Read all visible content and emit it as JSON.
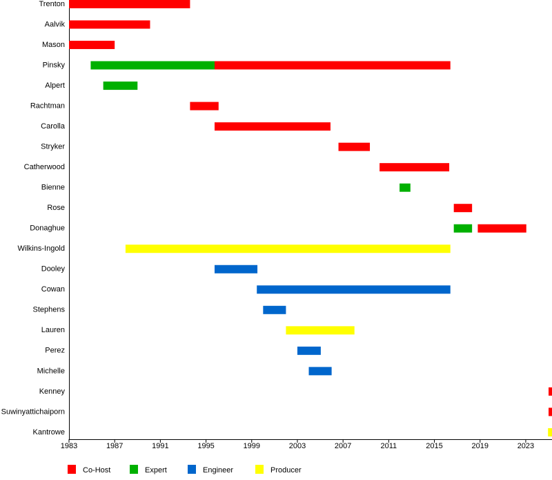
{
  "chart_data": {
    "type": "timeline",
    "categories": [
      "Trenton",
      "Aalvik",
      "Mason",
      "Pinsky",
      "Alpert",
      "Rachtman",
      "Carolla",
      "Stryker",
      "Catherwood",
      "Bienne",
      "Rose",
      "Donaghue",
      "Wilkins-Ingold",
      "Dooley",
      "Cowan",
      "Stephens",
      "Lauren",
      "Perez",
      "Michelle",
      "Kenney",
      "Suwinyattichaiporn",
      "Kantrowe"
    ],
    "series": [
      {
        "name": "Co-Host",
        "color": "#ff0000",
        "values": [
          [
            1983,
            1993.6
          ],
          [
            1983,
            1990.1
          ],
          [
            1983,
            1987
          ],
          [
            1995.75,
            2016.4
          ],
          null,
          [
            1993.6,
            1996.1
          ],
          [
            1995.75,
            2005.9
          ],
          [
            2006.6,
            2009.35
          ],
          [
            2010.2,
            2016.3
          ],
          null,
          [
            2016.7,
            2018.3
          ],
          [
            2018.8,
            2023.05
          ],
          null,
          null,
          null,
          null,
          null,
          null,
          null,
          [
            2025,
            2025.3
          ],
          [
            2025,
            2025.3
          ],
          null
        ]
      },
      {
        "name": "Expert",
        "color": "#00b000",
        "values": [
          null,
          null,
          null,
          [
            1984.9,
            1995.75
          ],
          [
            1986,
            1989
          ],
          null,
          null,
          null,
          null,
          [
            2011.95,
            2012.9
          ],
          null,
          [
            2016.7,
            2018.3
          ],
          null,
          null,
          null,
          null,
          null,
          null,
          null,
          null,
          null,
          null
        ]
      },
      {
        "name": "Engineer",
        "color": "#0066cc",
        "values": [
          null,
          null,
          null,
          null,
          null,
          null,
          null,
          null,
          null,
          null,
          null,
          null,
          null,
          [
            1995.75,
            1999.5
          ],
          [
            1999.45,
            2016.4
          ],
          [
            2000,
            2002
          ],
          null,
          [
            2003,
            2005.05
          ],
          [
            2004,
            2006
          ],
          null,
          null,
          null
        ]
      },
      {
        "name": "Producer",
        "color": "#ffff00",
        "values": [
          null,
          null,
          null,
          null,
          null,
          null,
          null,
          null,
          null,
          null,
          null,
          null,
          [
            1987.95,
            2016.4
          ],
          null,
          null,
          null,
          [
            2002,
            2008
          ],
          null,
          null,
          null,
          null,
          [
            2024.95,
            2025.3
          ]
        ]
      }
    ],
    "xlim": [
      1983,
      2025.3
    ],
    "xticks": [
      1983,
      1987,
      1991,
      1995,
      1999,
      2003,
      2007,
      2011,
      2015,
      2019,
      2023
    ]
  }
}
